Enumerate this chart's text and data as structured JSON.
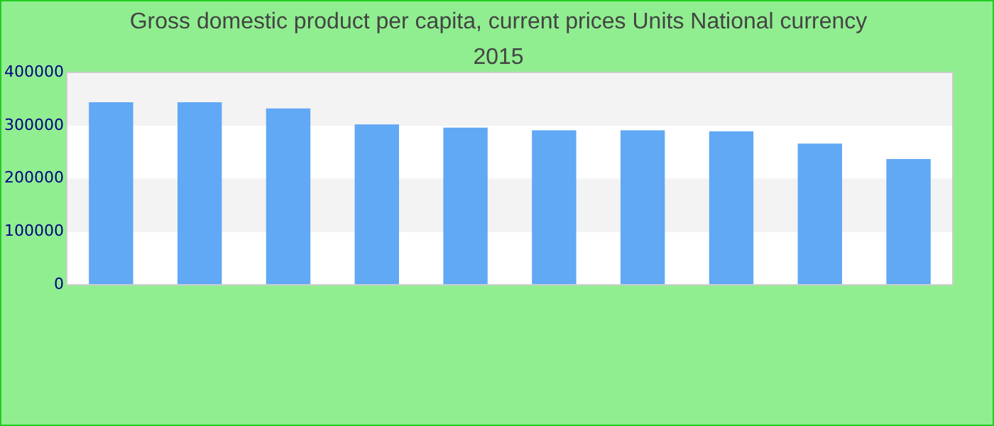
{
  "chart_data": {
    "type": "bar",
    "title": "Gross domestic product per capita, current prices Units National currency 2015",
    "categories": [
      null,
      null,
      null,
      null,
      null,
      null,
      null,
      null,
      null,
      null
    ],
    "values": [
      344000,
      344000,
      332000,
      302000,
      296000,
      291000,
      291000,
      289000,
      266000,
      237000
    ],
    "color": "#61a8f5",
    "ylim": [
      0,
      400000
    ],
    "yticks": [
      0,
      100000,
      200000,
      300000,
      400000
    ],
    "grid": "y",
    "legend": false
  }
}
